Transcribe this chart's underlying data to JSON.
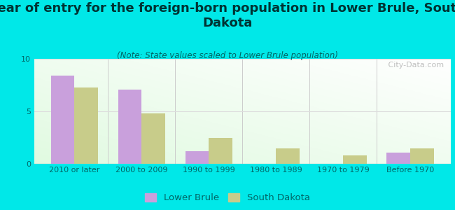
{
  "title": "Year of entry for the foreign-born population in Lower Brule, South\nDakota",
  "subtitle": "(Note: State values scaled to Lower Brule population)",
  "categories": [
    "2010 or later",
    "2000 to 2009",
    "1990 to 1999",
    "1980 to 1989",
    "1970 to 1979",
    "Before 1970"
  ],
  "lower_brule": [
    8.4,
    7.1,
    1.2,
    0.0,
    0.0,
    1.1
  ],
  "south_dakota": [
    7.3,
    4.8,
    2.5,
    1.5,
    0.8,
    1.5
  ],
  "lower_brule_color": "#c9a0dc",
  "south_dakota_color": "#c8cc8a",
  "background_color": "#00e8e8",
  "ylim": [
    0,
    10
  ],
  "yticks": [
    0,
    5,
    10
  ],
  "bar_width": 0.35,
  "title_fontsize": 13,
  "subtitle_fontsize": 8.5,
  "tick_fontsize": 8,
  "legend_fontsize": 9.5,
  "tick_color": "#006666",
  "title_color": "#003333",
  "subtitle_color": "#006666",
  "watermark_text": " City-Data.com",
  "watermark_color": "#aaaaaa",
  "divider_color": "#cccccc",
  "grid_color": "#dddddd"
}
